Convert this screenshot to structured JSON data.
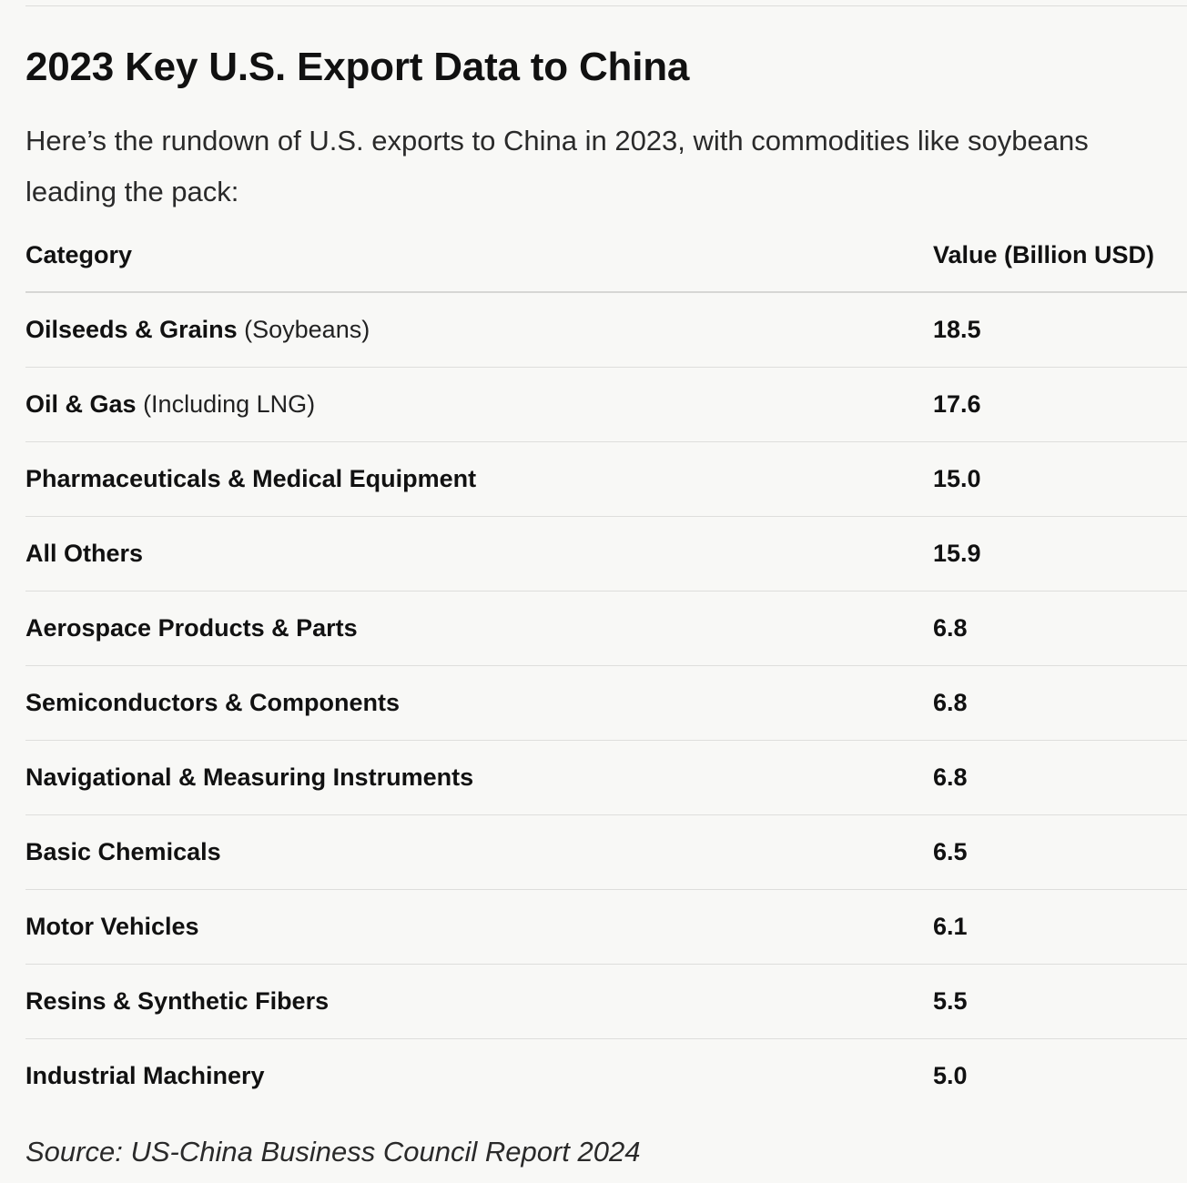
{
  "heading": "2023 Key U.S. Export Data to China",
  "intro": {
    "line1": "Here’s the rundown of U.S. exports to China in 2023, with commodities like soybeans",
    "line2": "leading the pack:"
  },
  "table": {
    "columns": [
      "Category",
      "Value (Billion USD)"
    ],
    "rows": [
      {
        "category": "Oilseeds & Grains",
        "note": "(Soybeans)",
        "value": "18.5"
      },
      {
        "category": "Oil & Gas",
        "note": "(Including LNG)",
        "value": "17.6"
      },
      {
        "category": "Pharmaceuticals & Medical Equipment",
        "note": "",
        "value": "15.0"
      },
      {
        "category": "All Others",
        "note": "",
        "value": "15.9"
      },
      {
        "category": "Aerospace Products & Parts",
        "note": "",
        "value": "6.8"
      },
      {
        "category": "Semiconductors & Components",
        "note": "",
        "value": "6.8"
      },
      {
        "category": "Navigational & Measuring Instruments",
        "note": "",
        "value": "6.8"
      },
      {
        "category": "Basic Chemicals",
        "note": "",
        "value": "6.5"
      },
      {
        "category": "Motor Vehicles",
        "note": "",
        "value": "6.1"
      },
      {
        "category": "Resins & Synthetic Fibers",
        "note": "",
        "value": "5.5"
      },
      {
        "category": "Industrial Machinery",
        "note": "",
        "value": "5.0"
      }
    ]
  },
  "source": "Source: US-China Business Council Report 2024"
}
